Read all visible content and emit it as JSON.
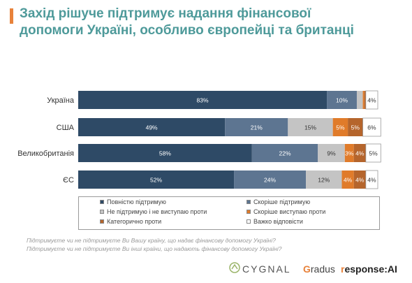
{
  "title_line1": "Захід рішуче підтримує надання фінансової",
  "title_line2": "допомоги Україні, особливо європейці та британці",
  "colors": {
    "title": "#4e9a9a",
    "accent": "#e8823a"
  },
  "chart_data": {
    "type": "bar",
    "orientation": "horizontal",
    "stacked": true,
    "categories": [
      "Україна",
      "США",
      "Великобританія",
      "ЄС"
    ],
    "series": [
      {
        "name": "Повністю підтримую",
        "color": "#2e4a66",
        "values": [
          83,
          49,
          58,
          52
        ],
        "labels": [
          "83%",
          "49%",
          "58%",
          "52%"
        ]
      },
      {
        "name": "Скоріше підтримую",
        "color": "#5d7591",
        "values": [
          10,
          21,
          22,
          24
        ],
        "labels": [
          "10%",
          "21%",
          "22%",
          "24%"
        ]
      },
      {
        "name": "Не підтримую і не виступаю проти",
        "color": "#c4c4c4",
        "values": [
          2,
          15,
          9,
          12
        ],
        "labels": [
          "",
          "15%",
          "9%",
          "12%"
        ]
      },
      {
        "name": "Скоріше виступаю проти",
        "color": "#e07b2a",
        "values": [
          0.5,
          5,
          3,
          4
        ],
        "labels": [
          "",
          "5%",
          "3%",
          "4%"
        ]
      },
      {
        "name": "Категорично проти",
        "color": "#b5652c",
        "values": [
          0.5,
          5,
          4,
          4
        ],
        "labels": [
          "",
          "5%",
          "4%",
          "4%"
        ]
      },
      {
        "name": "Важко відповісти",
        "color": "#ffffff",
        "values": [
          4,
          6,
          5,
          4
        ],
        "labels": [
          "4%",
          "6%",
          "5%",
          "4%"
        ]
      }
    ],
    "xlim": [
      0,
      100
    ],
    "legend_position": "bottom"
  },
  "questions": [
    "Підтримуєте чи не підтримуєте Ви Вашу країну, що надає фінансову допомогу Україні?",
    "Підтримуєте чи не підтримуєте Ви інші країни, що надають фінансову допомогу Україні?"
  ],
  "logos": {
    "cygnal": "CYGNAL",
    "gradus_g": "G",
    "gradus_rest": "radus",
    "response_r": "r",
    "response_rest": "esponse:AI"
  }
}
